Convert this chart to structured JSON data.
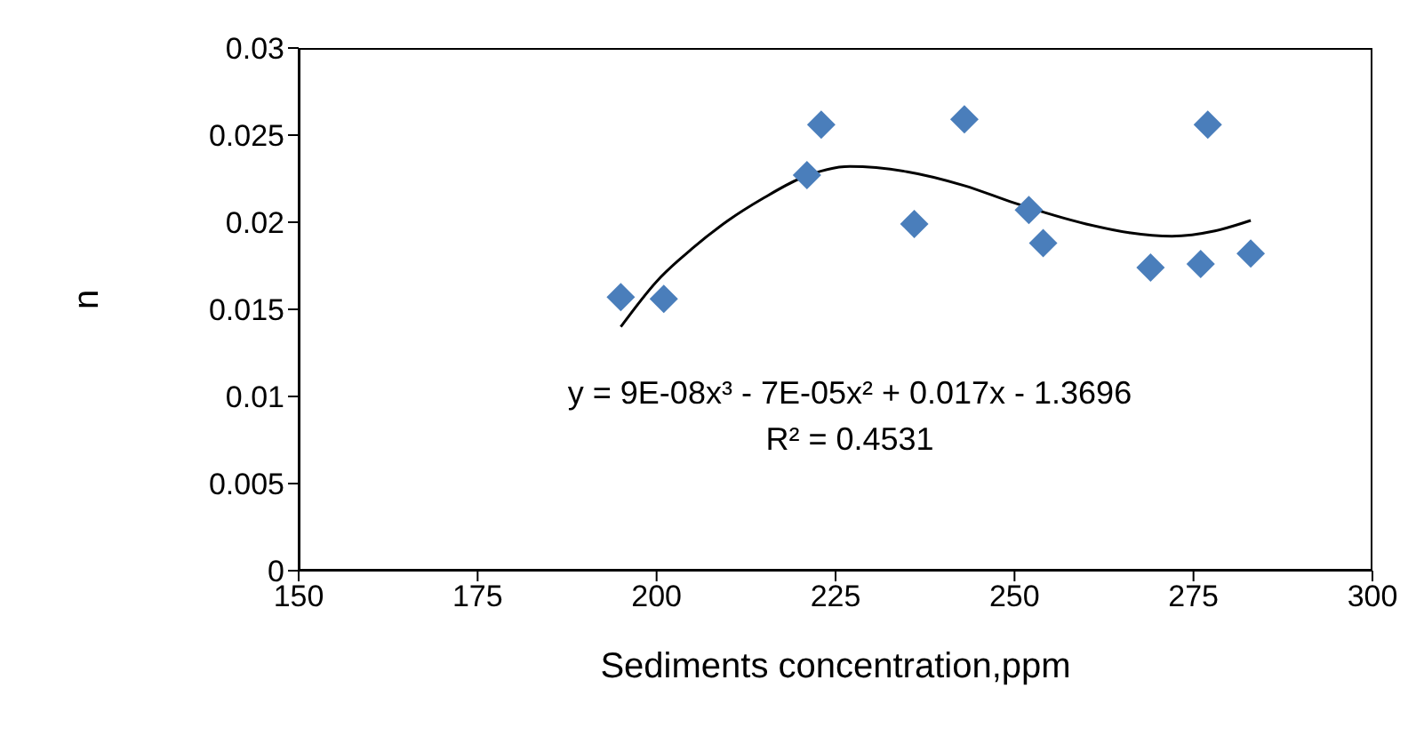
{
  "chart_data": {
    "type": "scatter",
    "xlabel": "Sediments concentration,ppm",
    "ylabel": "n",
    "xlim": [
      150,
      300
    ],
    "xticks": [
      150,
      175,
      200,
      225,
      250,
      275,
      300
    ],
    "ylim": [
      0,
      0.03
    ],
    "yticks": [
      0,
      0.005,
      0.01,
      0.015,
      0.02,
      0.025,
      0.03
    ],
    "marker": "diamond",
    "series": [
      {
        "color": "#4a7ebb",
        "x": [
          195,
          201,
          221,
          223,
          236,
          243,
          252,
          254,
          269,
          276,
          277,
          283
        ],
        "values": [
          0.0157,
          0.0156,
          0.0227,
          0.0256,
          0.0199,
          0.0259,
          0.0207,
          0.0188,
          0.0174,
          0.0176,
          0.0256,
          0.0182
        ]
      },
      {
        "type": "line",
        "color": "#000000",
        "marker": "none",
        "line_style": "solid",
        "x": [
          195,
          200,
          205,
          210,
          215,
          220,
          227,
          235,
          243,
          250,
          260,
          266,
          272,
          278,
          283
        ],
        "values": [
          0.014,
          0.0166,
          0.0185,
          0.0201,
          0.0214,
          0.0225,
          0.0232,
          0.0229,
          0.0221,
          0.0211,
          0.0199,
          0.0194,
          0.0192,
          0.0195,
          0.0201
        ]
      }
    ],
    "annotations": [
      "y = 9E-08x³ - 7E-05x² + 0.017x - 1.3696",
      "R² = 0.4531"
    ]
  }
}
